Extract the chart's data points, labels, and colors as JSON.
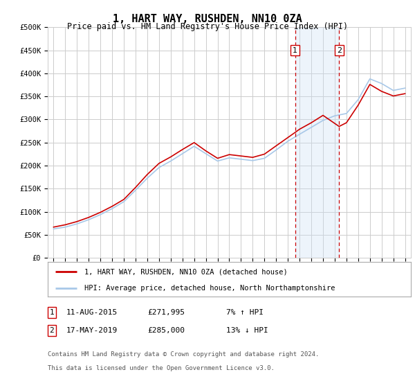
{
  "title": "1, HART WAY, RUSHDEN, NN10 0ZA",
  "subtitle": "Price paid vs. HM Land Registry's House Price Index (HPI)",
  "ylabel_ticks": [
    "£0",
    "£50K",
    "£100K",
    "£150K",
    "£200K",
    "£250K",
    "£300K",
    "£350K",
    "£400K",
    "£450K",
    "£500K"
  ],
  "ytick_values": [
    0,
    50000,
    100000,
    150000,
    200000,
    250000,
    300000,
    350000,
    400000,
    450000,
    500000
  ],
  "xlim_low": 1994.5,
  "xlim_high": 2025.5,
  "ylim_low": 0,
  "ylim_high": 500000,
  "hpi_color": "#a8c8e8",
  "property_color": "#cc0000",
  "sale1_date": 2015.617,
  "sale1_label": "1",
  "sale1_date_str": "11-AUG-2015",
  "sale1_price_str": "£271,995",
  "sale1_hpi_note": "7% ↑ HPI",
  "sale2_date": 2019.374,
  "sale2_label": "2",
  "sale2_date_str": "17-MAY-2019",
  "sale2_price_str": "£285,000",
  "sale2_hpi_note": "13% ↓ HPI",
  "legend_property": "1, HART WAY, RUSHDEN, NN10 0ZA (detached house)",
  "legend_hpi": "HPI: Average price, detached house, North Northamptonshire",
  "footnote_line1": "Contains HM Land Registry data © Crown copyright and database right 2024.",
  "footnote_line2": "This data is licensed under the Open Government Licence v3.0.",
  "background_color": "#ffffff",
  "grid_color": "#cccccc",
  "shade_color": "#cce0f5",
  "years_hpi": [
    1995,
    1996,
    1997,
    1998,
    1999,
    2000,
    2001,
    2002,
    2003,
    2004,
    2005,
    2006,
    2007,
    2008,
    2009,
    2010,
    2011,
    2012,
    2013,
    2014,
    2015,
    2016,
    2017,
    2018,
    2019,
    2020,
    2021,
    2022,
    2023,
    2024,
    2025
  ],
  "hpi_values": [
    63000,
    67000,
    74000,
    83000,
    94000,
    107000,
    122000,
    147000,
    173000,
    196000,
    210000,
    226000,
    242000,
    226000,
    210000,
    217000,
    214000,
    211000,
    216000,
    234000,
    253000,
    268000,
    283000,
    298000,
    308000,
    313000,
    343000,
    388000,
    378000,
    363000,
    368000
  ],
  "prop_years": [
    1995,
    1996,
    1997,
    1998,
    1999,
    2000,
    2001,
    2002,
    2003,
    2004,
    2005,
    2006,
    2007,
    2008,
    2009,
    2010,
    2011,
    2012,
    2013,
    2014,
    2015.617,
    2016,
    2017,
    2018,
    2019.374,
    2020,
    2021,
    2022,
    2023,
    2024,
    2025
  ],
  "prop_values": [
    67000,
    72000,
    79000,
    88000,
    99000,
    112000,
    127000,
    153000,
    181000,
    205000,
    219000,
    235000,
    250000,
    232000,
    216000,
    224000,
    221000,
    218000,
    225000,
    243000,
    271995,
    279000,
    293000,
    309000,
    285000,
    293000,
    331000,
    376000,
    361000,
    351000,
    356000
  ]
}
